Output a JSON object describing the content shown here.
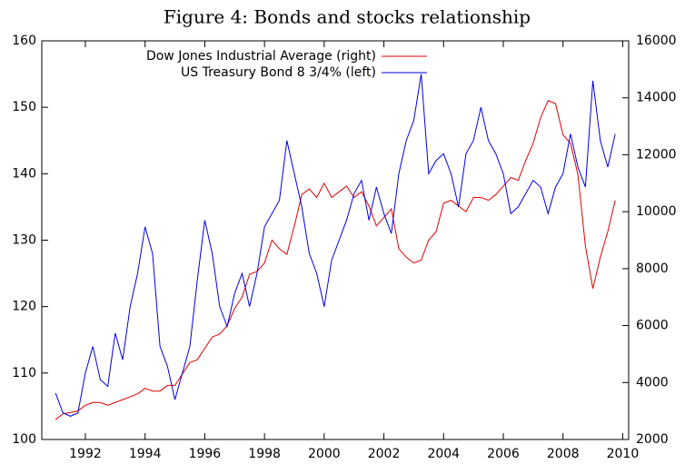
{
  "chart_data": {
    "type": "line",
    "title": "Figure 4: Bonds and stocks relationship",
    "x": [
      1991,
      1991.25,
      1991.5,
      1991.75,
      1992,
      1992.25,
      1992.5,
      1992.75,
      1993,
      1993.25,
      1993.5,
      1993.75,
      1994,
      1994.25,
      1994.5,
      1994.75,
      1995,
      1995.25,
      1995.5,
      1995.75,
      1996,
      1996.25,
      1996.5,
      1996.75,
      1997,
      1997.25,
      1997.5,
      1997.75,
      1998,
      1998.25,
      1998.5,
      1998.75,
      1999,
      1999.25,
      1999.5,
      1999.75,
      2000,
      2000.25,
      2000.5,
      2000.75,
      2001,
      2001.25,
      2001.5,
      2001.75,
      2002,
      2002.25,
      2002.5,
      2002.75,
      2003,
      2003.25,
      2003.5,
      2003.75,
      2004,
      2004.25,
      2004.5,
      2004.75,
      2005,
      2005.25,
      2005.5,
      2005.75,
      2006,
      2006.25,
      2006.5,
      2006.75,
      2007,
      2007.25,
      2007.5,
      2007.75,
      2008,
      2008.25,
      2008.5,
      2008.75,
      2009,
      2009.25,
      2009.5,
      2009.75
    ],
    "series": [
      {
        "name": "Dow Jones Industrial Average (right)",
        "color": "#e00000",
        "axis": "y2",
        "values": [
          2700,
          2900,
          2950,
          3000,
          3200,
          3300,
          3300,
          3200,
          3300,
          3400,
          3500,
          3600,
          3800,
          3700,
          3700,
          3900,
          3900,
          4300,
          4700,
          4800,
          5200,
          5600,
          5700,
          6000,
          6600,
          7000,
          7800,
          7900,
          8200,
          9000,
          8700,
          8500,
          9500,
          10600,
          10800,
          10500,
          11000,
          10500,
          10700,
          10900,
          10500,
          10700,
          10200,
          9500,
          9800,
          10100,
          8700,
          8400,
          8200,
          8300,
          9000,
          9300,
          10300,
          10400,
          10200,
          10000,
          10500,
          10500,
          10400,
          10600,
          10900,
          11200,
          11100,
          11800,
          12400,
          13300,
          13900,
          13800,
          12700,
          12400,
          11300,
          8800,
          7300,
          8400,
          9300,
          10400
        ]
      },
      {
        "name": "US Treasury Bond 8 3/4% (left)",
        "color": "#0000e0",
        "axis": "y",
        "values": [
          107,
          104,
          103.5,
          104,
          110,
          114,
          109,
          108,
          116,
          112,
          120,
          125,
          132,
          128,
          114,
          111,
          106,
          110,
          114,
          124,
          133,
          128,
          120,
          117,
          122,
          125,
          120,
          125,
          132,
          134,
          136,
          145,
          140,
          135,
          128,
          125,
          120,
          127,
          130,
          133,
          137,
          139,
          133,
          138,
          134,
          131,
          140,
          145,
          148,
          155,
          140,
          142,
          143,
          140,
          135,
          143,
          145,
          150,
          145,
          143,
          140,
          134,
          135,
          137,
          139,
          138,
          134,
          138,
          140,
          146,
          141,
          138,
          154,
          145,
          141,
          146
        ]
      }
    ],
    "xlim": [
      1990.54,
      2010.2
    ],
    "xticks": [
      1992,
      1994,
      1996,
      1998,
      2000,
      2002,
      2004,
      2006,
      2008,
      2010
    ],
    "ylim": [
      100,
      160
    ],
    "yticks": [
      100,
      110,
      120,
      130,
      140,
      150,
      160
    ],
    "y2lim": [
      2000,
      16000
    ],
    "y2ticks": [
      2000,
      4000,
      6000,
      8000,
      10000,
      12000,
      14000,
      16000
    ]
  }
}
